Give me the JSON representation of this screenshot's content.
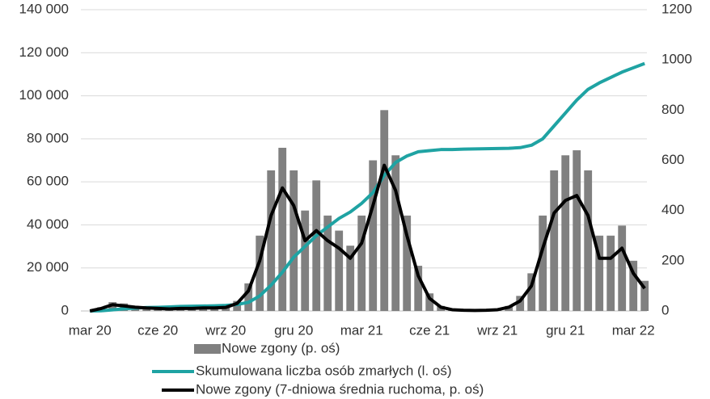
{
  "chart_data": {
    "type": "combo",
    "x": [
      0,
      0.5,
      1,
      1.5,
      2,
      2.5,
      3,
      3.5,
      4,
      4.5,
      5,
      5.5,
      6,
      6.5,
      7,
      7.5,
      8,
      8.5,
      9,
      9.5,
      10,
      10.5,
      11,
      11.5,
      12,
      12.5,
      13,
      13.5,
      14,
      14.5,
      15,
      15.5,
      16,
      16.5,
      17,
      17.5,
      18,
      18.5,
      19,
      19.5,
      20,
      20.5,
      21,
      21.5,
      22,
      22.5,
      23,
      23.5,
      24,
      24.5
    ],
    "xlim": [
      -0.4,
      24.6
    ],
    "xticks": [
      {
        "value": 0,
        "label": "mar 20"
      },
      {
        "value": 3,
        "label": "cze 20"
      },
      {
        "value": 6,
        "label": "wrz 20"
      },
      {
        "value": 9,
        "label": "gru 20"
      },
      {
        "value": 12,
        "label": "mar 21"
      },
      {
        "value": 15,
        "label": "cze 21"
      },
      {
        "value": 18,
        "label": "wrz 21"
      },
      {
        "value": 21,
        "label": "gru 21"
      },
      {
        "value": 24,
        "label": "mar 22"
      }
    ],
    "ylim": [
      0,
      140000
    ],
    "yticks": [
      0,
      {
        "value": 20000,
        "label": "20 000"
      },
      {
        "value": 40000,
        "label": "40 000"
      },
      {
        "value": 60000,
        "label": "60 000"
      },
      {
        "value": 80000,
        "label": "80 000"
      },
      {
        "value": 100000,
        "label": "100 000"
      },
      {
        "value": 120000,
        "label": "120 000"
      },
      {
        "value": 140000,
        "label": "140 000"
      }
    ],
    "y2lim": [
      0,
      1200
    ],
    "y2ticks": [
      0,
      200,
      400,
      600,
      800,
      1000,
      1200
    ],
    "grid": true,
    "legend": "bottom",
    "series": [
      {
        "name": "Nowe zgony (p. oś)",
        "type": "bar",
        "axis": "y2",
        "color": "#808080",
        "values": [
          0,
          15,
          35,
          30,
          20,
          15,
          12,
          10,
          12,
          12,
          14,
          14,
          18,
          40,
          110,
          300,
          560,
          650,
          560,
          400,
          520,
          380,
          320,
          260,
          380,
          600,
          800,
          620,
          380,
          180,
          70,
          20,
          8,
          5,
          3,
          4,
          8,
          20,
          60,
          150,
          380,
          560,
          620,
          640,
          560,
          300,
          300,
          340,
          200,
          120
        ]
      },
      {
        "name": "Skumulowana liczba osób zmarłych (l. oś)",
        "type": "line",
        "axis": "y",
        "color": "#1fa3a3",
        "values": [
          0,
          100,
          500,
          1000,
          1300,
          1600,
          1700,
          1900,
          2100,
          2200,
          2300,
          2400,
          2600,
          3000,
          4000,
          7000,
          12000,
          18000,
          25000,
          30000,
          35000,
          39000,
          43000,
          46000,
          50000,
          55000,
          63000,
          69000,
          72000,
          74000,
          74500,
          75000,
          75000,
          75200,
          75300,
          75400,
          75500,
          75600,
          75900,
          77000,
          80000,
          86000,
          92000,
          98000,
          103000,
          106000,
          108500,
          111000,
          113000,
          115000
        ]
      },
      {
        "name": "Nowe zgony (7-dniowa średnia ruchoma, p. oś)",
        "type": "line",
        "axis": "y2",
        "color": "#000000",
        "values": [
          0,
          10,
          25,
          20,
          15,
          12,
          10,
          8,
          10,
          10,
          12,
          12,
          14,
          30,
          80,
          200,
          380,
          490,
          420,
          280,
          320,
          280,
          250,
          210,
          270,
          420,
          580,
          480,
          300,
          140,
          50,
          15,
          5,
          3,
          2,
          3,
          5,
          15,
          40,
          100,
          250,
          390,
          440,
          460,
          380,
          210,
          210,
          250,
          150,
          90
        ]
      }
    ]
  }
}
